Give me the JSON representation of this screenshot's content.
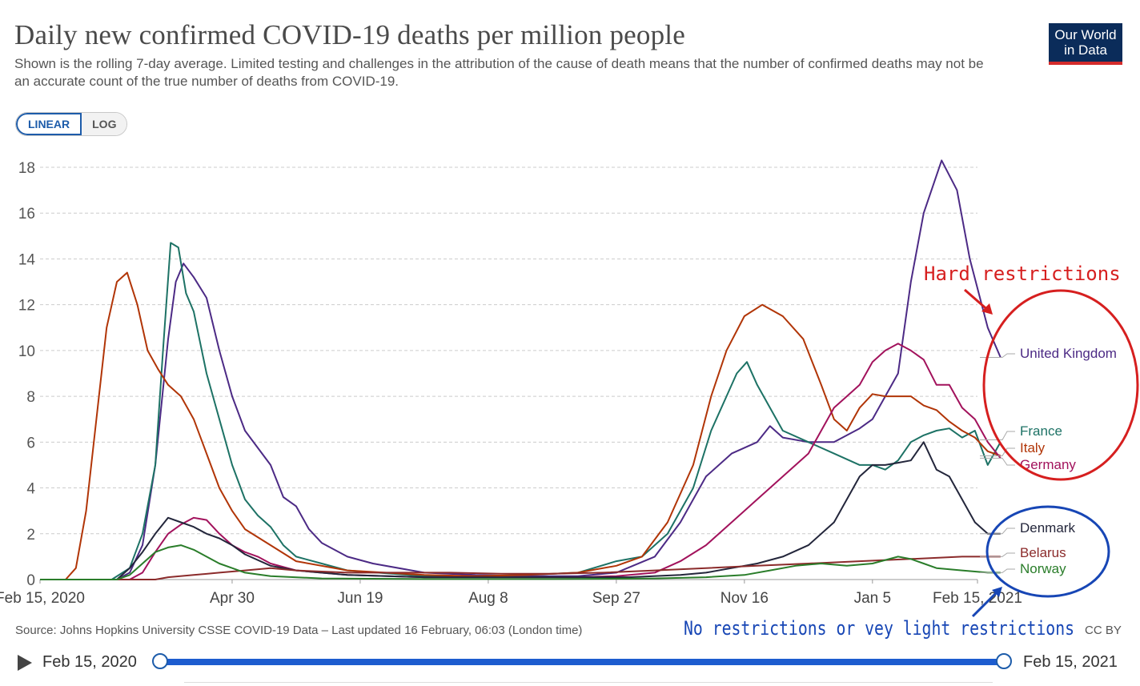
{
  "header": {
    "title": "Daily new confirmed COVID-19 deaths per million people",
    "subtitle": "Shown is the rolling 7-day average. Limited testing and challenges in the attribution of the cause of death means that the number of confirmed deaths may not be an accurate count of the true number of deaths from COVID-19.",
    "logo_line1": "Our World",
    "logo_line2": "in Data"
  },
  "scale_toggle": {
    "linear_label": "LINEAR",
    "log_label": "LOG",
    "selected": "LINEAR"
  },
  "footer": {
    "source": "Source: Johns Hopkins University CSSE COVID-19 Data – Last updated 16 February, 06:03 (London time)",
    "license": "CC BY"
  },
  "timeline": {
    "start_label": "Feb 15, 2020",
    "end_label": "Feb 15, 2021"
  },
  "annotations": {
    "hard": "Hard restrictions",
    "light": "No restrictions or vey light restrictions",
    "hard_color": "#d61f1f",
    "light_color": "#1746b5"
  },
  "chart_data": {
    "type": "line",
    "x_unit": "days since Feb 15, 2020",
    "xlim": [
      0,
      366
    ],
    "ylim": [
      0,
      18
    ],
    "yticks": [
      0,
      2,
      4,
      6,
      8,
      10,
      12,
      14,
      16,
      18
    ],
    "xticks": [
      {
        "label": "Feb 15, 2020",
        "x": 0
      },
      {
        "label": "Apr 30",
        "x": 75
      },
      {
        "label": "Jun 19",
        "x": 125
      },
      {
        "label": "Aug 8",
        "x": 175
      },
      {
        "label": "Sep 27",
        "x": 225
      },
      {
        "label": "Nov 16",
        "x": 275
      },
      {
        "label": "Jan 5",
        "x": 325
      },
      {
        "label": "Feb 15, 2021",
        "x": 366
      }
    ],
    "grid": true,
    "legend": "right",
    "series": [
      {
        "name": "United Kingdom",
        "color": "#4c2a85",
        "points": [
          [
            0,
            0
          ],
          [
            30,
            0
          ],
          [
            35,
            0.3
          ],
          [
            40,
            1.5
          ],
          [
            45,
            5
          ],
          [
            50,
            10.5
          ],
          [
            53,
            13
          ],
          [
            56,
            13.8
          ],
          [
            60,
            13.2
          ],
          [
            65,
            12.3
          ],
          [
            70,
            10
          ],
          [
            75,
            8
          ],
          [
            80,
            6.5
          ],
          [
            90,
            5
          ],
          [
            95,
            3.6
          ],
          [
            100,
            3.2
          ],
          [
            105,
            2.2
          ],
          [
            110,
            1.6
          ],
          [
            120,
            1
          ],
          [
            130,
            0.7
          ],
          [
            150,
            0.3
          ],
          [
            170,
            0.2
          ],
          [
            190,
            0.15
          ],
          [
            210,
            0.15
          ],
          [
            225,
            0.3
          ],
          [
            240,
            1
          ],
          [
            250,
            2.5
          ],
          [
            260,
            4.5
          ],
          [
            270,
            5.5
          ],
          [
            280,
            6
          ],
          [
            285,
            6.7
          ],
          [
            290,
            6.2
          ],
          [
            300,
            6
          ],
          [
            310,
            6
          ],
          [
            320,
            6.6
          ],
          [
            325,
            7
          ],
          [
            330,
            8
          ],
          [
            335,
            9
          ],
          [
            340,
            13
          ],
          [
            345,
            16
          ],
          [
            352,
            18.3
          ],
          [
            358,
            17
          ],
          [
            363,
            14
          ],
          [
            370,
            11
          ],
          [
            375,
            9.7
          ]
        ]
      },
      {
        "name": "France",
        "color": "#1d7265",
        "points": [
          [
            0,
            0
          ],
          [
            28,
            0
          ],
          [
            35,
            0.5
          ],
          [
            40,
            2
          ],
          [
            45,
            5
          ],
          [
            48,
            10
          ],
          [
            51,
            14.7
          ],
          [
            54,
            14.5
          ],
          [
            57,
            12.5
          ],
          [
            60,
            11.7
          ],
          [
            65,
            9
          ],
          [
            70,
            7
          ],
          [
            75,
            5
          ],
          [
            80,
            3.5
          ],
          [
            85,
            2.8
          ],
          [
            90,
            2.3
          ],
          [
            95,
            1.5
          ],
          [
            100,
            1
          ],
          [
            110,
            0.7
          ],
          [
            120,
            0.4
          ],
          [
            150,
            0.15
          ],
          [
            170,
            0.15
          ],
          [
            190,
            0.2
          ],
          [
            210,
            0.3
          ],
          [
            225,
            0.8
          ],
          [
            235,
            1
          ],
          [
            245,
            2
          ],
          [
            255,
            4
          ],
          [
            262,
            6.5
          ],
          [
            268,
            8
          ],
          [
            272,
            9
          ],
          [
            276,
            9.5
          ],
          [
            280,
            8.5
          ],
          [
            285,
            7.5
          ],
          [
            290,
            6.5
          ],
          [
            300,
            6
          ],
          [
            310,
            5.5
          ],
          [
            320,
            5
          ],
          [
            325,
            5
          ],
          [
            330,
            4.8
          ],
          [
            335,
            5.2
          ],
          [
            340,
            6
          ],
          [
            345,
            6.3
          ],
          [
            350,
            6.5
          ],
          [
            355,
            6.6
          ],
          [
            360,
            6.2
          ],
          [
            365,
            6.5
          ],
          [
            370,
            5
          ],
          [
            375,
            6
          ]
        ]
      },
      {
        "name": "Italy",
        "color": "#b13507",
        "points": [
          [
            0,
            0
          ],
          [
            10,
            0
          ],
          [
            14,
            0.5
          ],
          [
            18,
            3
          ],
          [
            22,
            7
          ],
          [
            26,
            11
          ],
          [
            30,
            13
          ],
          [
            34,
            13.4
          ],
          [
            38,
            12
          ],
          [
            42,
            10
          ],
          [
            46,
            9.2
          ],
          [
            50,
            8.5
          ],
          [
            55,
            8
          ],
          [
            60,
            7
          ],
          [
            65,
            5.5
          ],
          [
            70,
            4
          ],
          [
            75,
            3
          ],
          [
            80,
            2.2
          ],
          [
            90,
            1.5
          ],
          [
            100,
            0.8
          ],
          [
            120,
            0.4
          ],
          [
            150,
            0.2
          ],
          [
            170,
            0.15
          ],
          [
            190,
            0.2
          ],
          [
            210,
            0.3
          ],
          [
            225,
            0.6
          ],
          [
            235,
            1
          ],
          [
            245,
            2.5
          ],
          [
            255,
            5
          ],
          [
            262,
            8
          ],
          [
            268,
            10
          ],
          [
            275,
            11.5
          ],
          [
            282,
            12
          ],
          [
            290,
            11.5
          ],
          [
            298,
            10.5
          ],
          [
            305,
            8.5
          ],
          [
            310,
            7
          ],
          [
            315,
            6.5
          ],
          [
            320,
            7.5
          ],
          [
            325,
            8.1
          ],
          [
            330,
            8
          ],
          [
            340,
            8
          ],
          [
            345,
            7.6
          ],
          [
            350,
            7.4
          ],
          [
            355,
            6.9
          ],
          [
            360,
            6.5
          ],
          [
            365,
            6.2
          ],
          [
            370,
            5.6
          ],
          [
            375,
            5.4
          ]
        ]
      },
      {
        "name": "Germany",
        "color": "#a2125c",
        "points": [
          [
            0,
            0
          ],
          [
            35,
            0
          ],
          [
            40,
            0.3
          ],
          [
            45,
            1.2
          ],
          [
            50,
            2
          ],
          [
            55,
            2.4
          ],
          [
            60,
            2.7
          ],
          [
            65,
            2.6
          ],
          [
            70,
            2
          ],
          [
            75,
            1.5
          ],
          [
            80,
            1.2
          ],
          [
            85,
            1
          ],
          [
            90,
            0.7
          ],
          [
            100,
            0.4
          ],
          [
            120,
            0.2
          ],
          [
            150,
            0.1
          ],
          [
            170,
            0.1
          ],
          [
            190,
            0.1
          ],
          [
            210,
            0.1
          ],
          [
            225,
            0.15
          ],
          [
            240,
            0.3
          ],
          [
            250,
            0.8
          ],
          [
            260,
            1.5
          ],
          [
            270,
            2.5
          ],
          [
            280,
            3.5
          ],
          [
            290,
            4.5
          ],
          [
            300,
            5.5
          ],
          [
            305,
            6.5
          ],
          [
            310,
            7.5
          ],
          [
            315,
            8
          ],
          [
            320,
            8.5
          ],
          [
            325,
            9.5
          ],
          [
            330,
            10
          ],
          [
            335,
            10.3
          ],
          [
            340,
            10
          ],
          [
            345,
            9.6
          ],
          [
            350,
            8.5
          ],
          [
            355,
            8.5
          ],
          [
            360,
            7.5
          ],
          [
            365,
            7
          ],
          [
            370,
            6
          ],
          [
            375,
            5.3
          ]
        ]
      },
      {
        "name": "Denmark",
        "color": "#23263b",
        "points": [
          [
            0,
            0
          ],
          [
            30,
            0
          ],
          [
            35,
            0.5
          ],
          [
            40,
            1.2
          ],
          [
            45,
            2
          ],
          [
            50,
            2.7
          ],
          [
            55,
            2.5
          ],
          [
            60,
            2.3
          ],
          [
            65,
            2
          ],
          [
            70,
            1.8
          ],
          [
            75,
            1.5
          ],
          [
            80,
            1.1
          ],
          [
            90,
            0.6
          ],
          [
            100,
            0.4
          ],
          [
            120,
            0.2
          ],
          [
            150,
            0.1
          ],
          [
            170,
            0.1
          ],
          [
            190,
            0.1
          ],
          [
            210,
            0.1
          ],
          [
            230,
            0.1
          ],
          [
            250,
            0.2
          ],
          [
            260,
            0.3
          ],
          [
            270,
            0.5
          ],
          [
            280,
            0.7
          ],
          [
            290,
            1
          ],
          [
            300,
            1.5
          ],
          [
            310,
            2.5
          ],
          [
            315,
            3.5
          ],
          [
            320,
            4.5
          ],
          [
            325,
            5
          ],
          [
            330,
            5
          ],
          [
            335,
            5.1
          ],
          [
            340,
            5.2
          ],
          [
            345,
            6
          ],
          [
            350,
            4.8
          ],
          [
            355,
            4.5
          ],
          [
            360,
            3.5
          ],
          [
            365,
            2.5
          ],
          [
            370,
            2
          ],
          [
            375,
            2
          ]
        ]
      },
      {
        "name": "Belarus",
        "color": "#8b2b2b",
        "points": [
          [
            0,
            0
          ],
          [
            45,
            0
          ],
          [
            50,
            0.1
          ],
          [
            60,
            0.2
          ],
          [
            70,
            0.3
          ],
          [
            80,
            0.4
          ],
          [
            90,
            0.5
          ],
          [
            100,
            0.4
          ],
          [
            110,
            0.35
          ],
          [
            120,
            0.3
          ],
          [
            140,
            0.3
          ],
          [
            160,
            0.3
          ],
          [
            180,
            0.25
          ],
          [
            200,
            0.25
          ],
          [
            220,
            0.3
          ],
          [
            240,
            0.4
          ],
          [
            260,
            0.5
          ],
          [
            280,
            0.6
          ],
          [
            300,
            0.7
          ],
          [
            320,
            0.8
          ],
          [
            340,
            0.9
          ],
          [
            360,
            1
          ],
          [
            375,
            1
          ]
        ]
      },
      {
        "name": "Norway",
        "color": "#2a7d2a",
        "points": [
          [
            0,
            0
          ],
          [
            30,
            0
          ],
          [
            35,
            0.2
          ],
          [
            40,
            0.7
          ],
          [
            45,
            1.2
          ],
          [
            50,
            1.4
          ],
          [
            55,
            1.5
          ],
          [
            60,
            1.3
          ],
          [
            65,
            1
          ],
          [
            70,
            0.7
          ],
          [
            75,
            0.5
          ],
          [
            80,
            0.3
          ],
          [
            90,
            0.15
          ],
          [
            110,
            0.05
          ],
          [
            150,
            0.02
          ],
          [
            200,
            0.02
          ],
          [
            240,
            0.05
          ],
          [
            260,
            0.1
          ],
          [
            275,
            0.2
          ],
          [
            285,
            0.4
          ],
          [
            295,
            0.6
          ],
          [
            305,
            0.7
          ],
          [
            315,
            0.6
          ],
          [
            325,
            0.7
          ],
          [
            335,
            1
          ],
          [
            340,
            0.9
          ],
          [
            345,
            0.7
          ],
          [
            350,
            0.5
          ],
          [
            360,
            0.4
          ],
          [
            370,
            0.3
          ],
          [
            375,
            0.3
          ]
        ]
      }
    ],
    "labels": [
      {
        "name": "United Kingdom",
        "y": 9.7
      },
      {
        "name": "France",
        "y": 6.1
      },
      {
        "name": "Italy",
        "y": 5.4
      },
      {
        "name": "Germany",
        "y": 5.3
      },
      {
        "name": "Denmark",
        "y": 2
      },
      {
        "name": "Belarus",
        "y": 1
      },
      {
        "name": "Norway",
        "y": 0.3
      }
    ]
  }
}
